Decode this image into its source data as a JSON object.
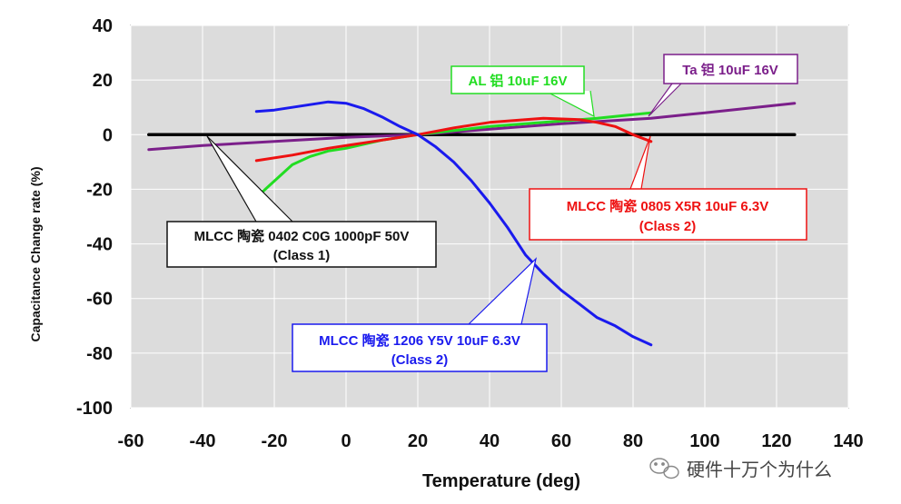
{
  "chart_data": {
    "type": "line",
    "title": "",
    "xlabel": "Temperature  (deg)",
    "ylabel": "Capacitance Change rate (%)",
    "xlim": [
      -60,
      140
    ],
    "ylim": [
      -100,
      40
    ],
    "xticks": [
      -60,
      -40,
      -20,
      0,
      20,
      40,
      60,
      80,
      100,
      120,
      140
    ],
    "yticks": [
      40,
      20,
      0,
      -20,
      -40,
      -60,
      -80,
      -100
    ],
    "grid": true,
    "series": [
      {
        "name": "MLCC 陶瓷 0402 C0G 1000pF 50V (Class 1)",
        "color": "#000000",
        "points": [
          [
            -55,
            0
          ],
          [
            125,
            0
          ]
        ]
      },
      {
        "name": "Ta 钽 10uF 16V",
        "color": "#7b1f8a",
        "points": [
          [
            -55,
            -5.5
          ],
          [
            -40,
            -4
          ],
          [
            -20,
            -2.5
          ],
          [
            0,
            -1
          ],
          [
            20,
            0
          ],
          [
            40,
            2
          ],
          [
            60,
            4
          ],
          [
            85,
            6
          ],
          [
            100,
            8
          ],
          [
            125,
            11.5
          ]
        ]
      },
      {
        "name": "AL 铝 10uF 16V",
        "color": "#22dd22",
        "points": [
          [
            -25,
            -23
          ],
          [
            -20,
            -17
          ],
          [
            -15,
            -11
          ],
          [
            -10,
            -8
          ],
          [
            -5,
            -6
          ],
          [
            0,
            -5
          ],
          [
            5,
            -3.5
          ],
          [
            10,
            -2
          ],
          [
            15,
            -1
          ],
          [
            20,
            0
          ],
          [
            30,
            1.5
          ],
          [
            40,
            3
          ],
          [
            50,
            4
          ],
          [
            60,
            5
          ],
          [
            70,
            6
          ],
          [
            85,
            8
          ]
        ]
      },
      {
        "name": "MLCC 陶瓷 0805 X5R 10uF 6.3V (Class 2)",
        "color": "#ee1111",
        "points": [
          [
            -25,
            -9.5
          ],
          [
            -15,
            -7.5
          ],
          [
            -5,
            -5
          ],
          [
            5,
            -3
          ],
          [
            15,
            -1
          ],
          [
            20,
            0
          ],
          [
            30,
            2.5
          ],
          [
            40,
            4.5
          ],
          [
            50,
            5.5
          ],
          [
            55,
            6
          ],
          [
            65,
            5.5
          ],
          [
            70,
            4.5
          ],
          [
            75,
            3
          ],
          [
            80,
            0
          ],
          [
            85,
            -2.5
          ]
        ]
      },
      {
        "name": "MLCC 陶瓷 1206 Y5V 10uF 6.3V (Class 2)",
        "color": "#1a1aee",
        "points": [
          [
            -25,
            8.5
          ],
          [
            -20,
            9
          ],
          [
            -15,
            10
          ],
          [
            -10,
            11
          ],
          [
            -5,
            12
          ],
          [
            0,
            11.5
          ],
          [
            5,
            9.5
          ],
          [
            10,
            6.5
          ],
          [
            15,
            3
          ],
          [
            20,
            0
          ],
          [
            25,
            -4.5
          ],
          [
            30,
            -10
          ],
          [
            35,
            -17
          ],
          [
            40,
            -25
          ],
          [
            45,
            -34
          ],
          [
            50,
            -44
          ],
          [
            55,
            -51
          ],
          [
            60,
            -57
          ],
          [
            65,
            -62
          ],
          [
            70,
            -67
          ],
          [
            75,
            -70
          ],
          [
            80,
            -74
          ],
          [
            85,
            -77
          ]
        ]
      }
    ],
    "annotations": [
      {
        "lines": [
          "AL 铝 10uF 16V"
        ],
        "color": "#22dd22"
      },
      {
        "lines": [
          "Ta  钽 10uF 16V"
        ],
        "color": "#7b1f8a"
      },
      {
        "lines": [
          "MLCC 陶瓷 0402 C0G 1000pF 50V",
          "(Class 1)"
        ],
        "color": "#111111"
      },
      {
        "lines": [
          "MLCC 陶瓷 0805 X5R 10uF 6.3V",
          "(Class 2)"
        ],
        "color": "#ee1111"
      },
      {
        "lines": [
          "MLCC 陶瓷 1206 Y5V 10uF 6.3V",
          "(Class 2)"
        ],
        "color": "#1a1aee"
      }
    ]
  },
  "watermark": {
    "text": "硬件十万个为什么",
    "icon": "wechat-icon"
  }
}
